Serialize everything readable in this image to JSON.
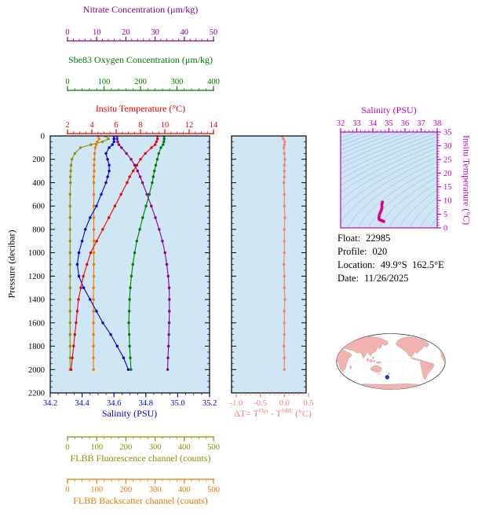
{
  "palette": {
    "plot_background": "#cfe6f4",
    "contour": "#86b6cc",
    "ts_axis": "#bb00bb",
    "ts_curve": "#dd0088",
    "map_land": "#f2b3ae",
    "map_marker": "#2233bb",
    "frame": "#000000"
  },
  "float_info": {
    "rows": [
      {
        "label": "Float:",
        "value": "22985"
      },
      {
        "label": "Profile:",
        "value": "020"
      },
      {
        "label": "Location:",
        "value": "49.9°S  162.5°E"
      },
      {
        "label": "Date:",
        "value": "11/26/2025"
      }
    ]
  },
  "chart_data": {
    "type": "line",
    "profile": {
      "pressure_axis": {
        "label": "Pressure (decibar)",
        "range": [
          0,
          2200
        ],
        "tick_step": 200,
        "minor_step": 50,
        "ticks": [
          0,
          200,
          400,
          600,
          800,
          1000,
          1200,
          1400,
          1600,
          1800,
          2000,
          2200
        ]
      },
      "pressure_levels": [
        0,
        25,
        50,
        75,
        100,
        150,
        200,
        250,
        300,
        350,
        400,
        500,
        600,
        700,
        800,
        900,
        1000,
        1100,
        1200,
        1300,
        1400,
        1500,
        1600,
        1700,
        1800,
        1900,
        2000
      ],
      "series": [
        {
          "id": "nitrate",
          "name": "Nitrate Concentration (μm/kg)",
          "color": "#8b008b",
          "range": [
            0,
            50
          ],
          "ticks": [
            0,
            10,
            20,
            30,
            40,
            50
          ],
          "minor_step": 2,
          "axis": "top-1",
          "values": [
            17.0,
            17.0,
            17.2,
            17.6,
            18.5,
            20.2,
            21.8,
            23.0,
            24.0,
            24.9,
            25.7,
            27.2,
            28.7,
            30.1,
            31.4,
            32.5,
            33.4,
            34.0,
            34.5,
            34.8,
            34.9,
            34.9,
            34.8,
            34.7,
            34.6,
            34.4,
            34.3
          ]
        },
        {
          "id": "oxygen",
          "name": "Sbe83 Oxygen Concentration (μm/kg)",
          "color": "#007800",
          "range": [
            0,
            400
          ],
          "ticks": [
            0,
            100,
            200,
            300,
            400
          ],
          "minor_step": 20,
          "axis": "top-2",
          "values": [
            265,
            265,
            264,
            262,
            256,
            250,
            246,
            242,
            238,
            235,
            232,
            224,
            215,
            206,
            198,
            190,
            184,
            179,
            175,
            172,
            170,
            169,
            168,
            169,
            170,
            172,
            174
          ]
        },
        {
          "id": "temperature",
          "name": "Insitu Temperature (°C)",
          "color": "#ee0000",
          "range": [
            2,
            14
          ],
          "ticks": [
            2,
            4,
            6,
            8,
            10,
            12,
            14
          ],
          "minor_step": 0.5,
          "axis": "top-3",
          "values": [
            9.4,
            9.4,
            9.3,
            9.2,
            8.9,
            8.4,
            8.0,
            7.7,
            7.4,
            7.1,
            6.9,
            6.4,
            5.9,
            5.4,
            4.9,
            4.4,
            3.9,
            3.6,
            3.3,
            3.1,
            2.9,
            2.8,
            2.7,
            2.6,
            2.5,
            2.4,
            2.3
          ]
        },
        {
          "id": "salinity",
          "name": "Salinity (PSU)",
          "color": "#0000dd",
          "range": [
            34.2,
            35.2
          ],
          "ticks": [
            "34.2",
            "34.4",
            "34.6",
            "34.8",
            "35.0",
            "35.2"
          ],
          "minor_step": 0.05,
          "axis": "bottom-1",
          "values": [
            34.6,
            34.6,
            34.6,
            34.59,
            34.57,
            34.55,
            34.56,
            34.57,
            34.57,
            34.56,
            34.55,
            34.52,
            34.49,
            34.45,
            34.42,
            34.4,
            34.38,
            34.37,
            34.38,
            34.41,
            34.45,
            34.49,
            34.53,
            34.58,
            34.62,
            34.66,
            34.69
          ]
        },
        {
          "id": "fluorescence",
          "name": "FLBB Fluorescence channel (counts)",
          "color": "#8f8f00",
          "range": [
            0,
            500
          ],
          "ticks": [
            0,
            100,
            200,
            300,
            400,
            500
          ],
          "minor_step": 25,
          "axis": "bottom-2",
          "values": [
            130,
            140,
            120,
            80,
            45,
            25,
            15,
            12,
            11,
            10,
            10,
            9,
            9,
            9,
            9,
            9,
            9,
            9,
            9,
            9,
            9,
            9,
            9,
            9,
            9,
            9,
            9
          ]
        },
        {
          "id": "backscatter",
          "name": "FLBB Backscatter channel (counts)",
          "color": "#ee7700",
          "range": [
            0,
            500
          ],
          "ticks": [
            0,
            100,
            200,
            300,
            400,
            500
          ],
          "minor_step": 25,
          "axis": "bottom-3",
          "values": [
            105,
            108,
            102,
            98,
            95,
            93,
            92,
            91,
            91,
            90,
            90,
            90,
            90,
            90,
            90,
            90,
            90,
            90,
            90,
            89,
            89,
            89,
            89,
            89,
            89,
            89,
            89
          ]
        }
      ]
    },
    "delta": {
      "title_parts": {
        "pre": "ΔT= T",
        "sup1": "Opt",
        "mid": " - T",
        "sup2": "SBE",
        "post": " (°C)"
      },
      "color": "#f87e72",
      "range": [
        -1.0,
        0.5
      ],
      "ticks": [
        "-1.0",
        "-0.5",
        "0.0",
        "0.5"
      ],
      "minor_step": 0.1,
      "values": [
        -0.05,
        -0.02,
        0.01,
        0.0,
        -0.01,
        0.0,
        0.01,
        0.0,
        0.0,
        0.0,
        -0.01,
        0.0,
        0.0,
        0.01,
        0.0,
        0.0,
        0.0,
        -0.01,
        0.0,
        0.0,
        0.01,
        0.0,
        0.0,
        0.0,
        -0.01,
        0.0,
        0.0
      ]
    },
    "ts": {
      "x_axis": {
        "label": "Salinity (PSU)",
        "range": [
          32,
          38
        ],
        "ticks": [
          32,
          33,
          34,
          35,
          36,
          37,
          38
        ],
        "minor_step": 0.25
      },
      "y_axis": {
        "label": "Insitu Temperature (°C)",
        "range": [
          0,
          35
        ],
        "ticks": [
          0,
          5,
          10,
          15,
          20,
          25,
          30,
          35
        ],
        "minor_step": 1
      },
      "note": "curve is profile salinity vs insitu temperature over density contours"
    }
  }
}
